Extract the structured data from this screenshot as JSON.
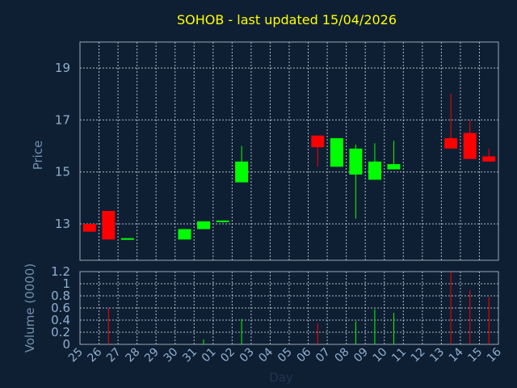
{
  "chart_data": [
    {
      "type": "candlestick",
      "title": "SOHOB - last updated 15/04/2026",
      "ylabel": "Price",
      "ylim": [
        11.6,
        20.0
      ],
      "yticks": [
        "13",
        "15",
        "17",
        "19"
      ],
      "ytick_values": [
        13,
        15,
        17,
        19
      ],
      "grid": true,
      "colors": {
        "up": "#00ff00",
        "down": "#ff0000",
        "background": "#0f1f33",
        "title": "#ffff00"
      },
      "candles": [
        {
          "day": "25",
          "open": 13.0,
          "high": 13.0,
          "low": 12.7,
          "close": 12.7
        },
        {
          "day": "26",
          "open": 13.5,
          "high": 13.5,
          "low": 12.4,
          "close": 12.4
        },
        {
          "day": "27",
          "open": 12.4,
          "high": 12.4,
          "low": 12.4,
          "close": 12.42
        },
        {
          "day": "30",
          "open": 12.4,
          "high": 12.8,
          "low": 12.4,
          "close": 12.8
        },
        {
          "day": "31",
          "open": 12.8,
          "high": 13.1,
          "low": 12.8,
          "close": 13.1
        },
        {
          "day": "01",
          "open": 13.05,
          "high": 13.1,
          "low": 13.05,
          "close": 13.1
        },
        {
          "day": "02",
          "open": 14.6,
          "high": 16.0,
          "low": 14.6,
          "close": 15.4
        },
        {
          "day": "06",
          "open": 16.4,
          "high": 16.4,
          "low": 15.2,
          "close": 15.95
        },
        {
          "day": "07",
          "open": 15.2,
          "high": 16.3,
          "low": 15.2,
          "close": 16.3
        },
        {
          "day": "08",
          "open": 14.9,
          "high": 16.05,
          "low": 13.2,
          "close": 15.9
        },
        {
          "day": "09",
          "open": 14.7,
          "high": 16.1,
          "low": 14.7,
          "close": 15.4
        },
        {
          "day": "10",
          "open": 15.1,
          "high": 16.2,
          "low": 15.1,
          "close": 15.3
        },
        {
          "day": "13",
          "open": 16.3,
          "high": 18.0,
          "low": 15.9,
          "close": 15.9
        },
        {
          "day": "14",
          "open": 16.5,
          "high": 17.0,
          "low": 15.5,
          "close": 15.5
        },
        {
          "day": "15",
          "open": 15.6,
          "high": 15.9,
          "low": 15.4,
          "close": 15.4
        }
      ]
    },
    {
      "type": "bar",
      "ylabel": "Volume (0000)",
      "xlabel": "Day",
      "ylim": [
        0,
        1.2
      ],
      "yticks": [
        "0",
        "0.2",
        "0.4",
        "0.6",
        "0.8",
        "1",
        "1.2"
      ],
      "ytick_values": [
        0,
        0.2,
        0.4,
        0.6,
        0.8,
        1.0,
        1.2
      ],
      "categories": [
        "25",
        "26",
        "27",
        "28",
        "29",
        "30",
        "31",
        "01",
        "02",
        "03",
        "04",
        "05",
        "06",
        "07",
        "08",
        "09",
        "10",
        "11",
        "12",
        "13",
        "14",
        "15",
        "16"
      ],
      "volumes": [
        {
          "day": "26",
          "value": 0.6,
          "dir": "down"
        },
        {
          "day": "31",
          "value": 0.08,
          "dir": "up"
        },
        {
          "day": "02",
          "value": 0.42,
          "dir": "up"
        },
        {
          "day": "06",
          "value": 0.35,
          "dir": "down"
        },
        {
          "day": "08",
          "value": 0.38,
          "dir": "up"
        },
        {
          "day": "09",
          "value": 0.58,
          "dir": "up"
        },
        {
          "day": "10",
          "value": 0.52,
          "dir": "up"
        },
        {
          "day": "13",
          "value": 1.2,
          "dir": "down"
        },
        {
          "day": "14",
          "value": 0.9,
          "dir": "down"
        },
        {
          "day": "15",
          "value": 0.78,
          "dir": "down"
        }
      ]
    }
  ]
}
